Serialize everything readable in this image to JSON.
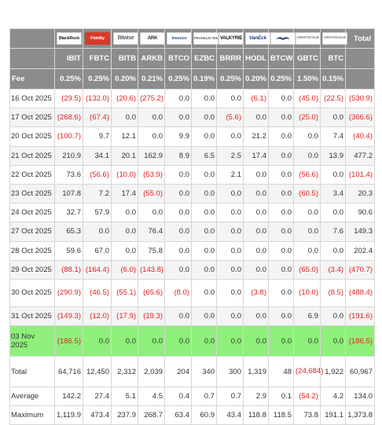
{
  "header": {
    "total_label": "Total",
    "fee_label": "Fee",
    "funds": [
      {
        "ticker": "IBIT",
        "fee": "0.25%",
        "logo_text": "BlackRock",
        "logo_icon": "blackrock-logo-icon"
      },
      {
        "ticker": "FBTC",
        "fee": "0.25%",
        "logo_text": "Fidelity",
        "logo_icon": "fidelity-logo-icon"
      },
      {
        "ticker": "BITB",
        "fee": "0.20%",
        "logo_text": "Bitwise",
        "logo_icon": "bitwise-logo-icon"
      },
      {
        "ticker": "ARKB",
        "fee": "0.21%",
        "logo_text": "ARK",
        "logo_icon": "ark-logo-icon"
      },
      {
        "ticker": "BTCO",
        "fee": "0.25%",
        "logo_text": "Invesco",
        "logo_icon": "invesco-logo-icon"
      },
      {
        "ticker": "EZBC",
        "fee": "0.19%",
        "logo_text": "FRANKLIN TEMPLETON",
        "logo_icon": "franklin-logo-icon"
      },
      {
        "ticker": "BRRR",
        "fee": "0.25%",
        "logo_text": "VALKYRIE",
        "logo_icon": "valkyrie-logo-icon"
      },
      {
        "ticker": "HODL",
        "fee": "0.20%",
        "logo_text": "VanEck",
        "logo_icon": "vaneck-logo-icon"
      },
      {
        "ticker": "BTCW",
        "fee": "0.25%",
        "logo_text": "WISDOMTREE",
        "logo_icon": "wisdomtree-logo-icon"
      },
      {
        "ticker": "GBTC",
        "fee": "1.50%",
        "logo_text": "GRAYSCALE",
        "logo_icon": "grayscale-logo-icon"
      },
      {
        "ticker": "BTC",
        "fee": "0.15%",
        "logo_text": "GRAYSCALE",
        "logo_icon": "grayscale-logo-icon"
      }
    ]
  },
  "rows": [
    {
      "date": "16 Oct 2025",
      "values": [
        "(29.5)",
        "(132.0)",
        "(20.6)",
        "(275.2)",
        "0.0",
        "0.0",
        "0.0",
        "(6.1)",
        "0.0",
        "(45.0)",
        "(22.5)"
      ],
      "total": "(530.9)"
    },
    {
      "date": "17 Oct 2025",
      "values": [
        "(268.6)",
        "(67.4)",
        "0.0",
        "0.0",
        "0.0",
        "0.0",
        "(5.6)",
        "0.0",
        "0.0",
        "(25.0)",
        "0.0"
      ],
      "total": "(366.6)"
    },
    {
      "date": "20 Oct 2025",
      "values": [
        "(100.7)",
        "9.7",
        "12.1",
        "0.0",
        "9.9",
        "0.0",
        "0.0",
        "21.2",
        "0.0",
        "0.0",
        "7.4"
      ],
      "total": "(40.4)"
    },
    {
      "date": "21 Oct 2025",
      "values": [
        "210.9",
        "34.1",
        "20.1",
        "162.9",
        "8.9",
        "6.5",
        "2.5",
        "17.4",
        "0.0",
        "0.0",
        "13.9"
      ],
      "total": "477.2"
    },
    {
      "date": "22 Oct 2025",
      "values": [
        "73.6",
        "(56.6)",
        "(10.0)",
        "(53.9)",
        "0.0",
        "0.0",
        "2.1",
        "0.0",
        "0.0",
        "(56.6)",
        "0.0"
      ],
      "total": "(101.4)"
    },
    {
      "date": "23 Oct 2025",
      "values": [
        "107.8",
        "7.2",
        "17.4",
        "(55.0)",
        "0.0",
        "0.0",
        "0.0",
        "0.0",
        "0.0",
        "(60.5)",
        "3.4"
      ],
      "total": "20.3"
    },
    {
      "date": "24 Oct 2025",
      "values": [
        "32.7",
        "57.9",
        "0.0",
        "0.0",
        "0.0",
        "0.0",
        "0.0",
        "0.0",
        "0.0",
        "0.0",
        "0.0"
      ],
      "total": "90.6"
    },
    {
      "date": "27 Oct 2025",
      "values": [
        "65.3",
        "0.0",
        "0.0",
        "76.4",
        "0.0",
        "0.0",
        "0.0",
        "0.0",
        "0.0",
        "0.0",
        "7.6"
      ],
      "total": "149.3"
    },
    {
      "date": "28 Oct 2025",
      "values": [
        "59.6",
        "67.0",
        "0.0",
        "75.8",
        "0.0",
        "0.0",
        "0.0",
        "0.0",
        "0.0",
        "0.0",
        "0.0"
      ],
      "total": "202.4"
    },
    {
      "date": "29 Oct 2025",
      "values": [
        "(88.1)",
        "(164.4)",
        "(6.0)",
        "(143.8)",
        "0.0",
        "0.0",
        "0.0",
        "0.0",
        "0.0",
        "(65.0)",
        "(3.4)"
      ],
      "total": "(470.7)"
    },
    {
      "date": "30 Oct 2025",
      "values": [
        "(290.9)",
        "(46.5)",
        "(55.1)",
        "(65.6)",
        "(8.0)",
        "0.0",
        "0.0",
        "(3.8)",
        "0.0",
        "(10.0)",
        "(8.5)"
      ],
      "total": "(488.4)",
      "tall": true
    },
    {
      "date": "31 Oct 2025",
      "values": [
        "(149.3)",
        "(12.0)",
        "(17.9)",
        "(19.3)",
        "0.0",
        "0.0",
        "0.0",
        "0.0",
        "0.0",
        "6.9",
        "0.0"
      ],
      "total": "(191.6)"
    },
    {
      "date": "03 Nov 2025",
      "values": [
        "(186.5)",
        "0.0",
        "0.0",
        "0.0",
        "0.0",
        "0.0",
        "0.0",
        "0.0",
        "0.0",
        "0.0",
        "0.0"
      ],
      "total": "(186.5)",
      "highlight": true
    }
  ],
  "summary": [
    {
      "label": "Total",
      "values": [
        "64,716",
        "12,450",
        "2,312",
        "2,039",
        "204",
        "340",
        "300",
        "1,319",
        "48",
        "(24,684)",
        "1,922"
      ],
      "total": "60,967",
      "kind": "total"
    },
    {
      "label": "Average",
      "values": [
        "142.2",
        "27.4",
        "5.1",
        "4.5",
        "0.4",
        "0.7",
        "0.7",
        "2.9",
        "0.1",
        "(54.2)",
        "4.2"
      ],
      "total": "134.0",
      "kind": "average"
    },
    {
      "label": "Maximum",
      "values": [
        "1,119.9",
        "473.4",
        "237.9",
        "268.7",
        "63.4",
        "60.9",
        "43.4",
        "118.8",
        "118.5",
        "73.8",
        "191.1"
      ],
      "total": "1,373.8",
      "kind": "maximum"
    }
  ],
  "colors": {
    "header_bg": "#8c8c8c",
    "negative": "#e02020",
    "highlight_row": "#8ef07a",
    "alt_row": "#f4f4f4"
  }
}
